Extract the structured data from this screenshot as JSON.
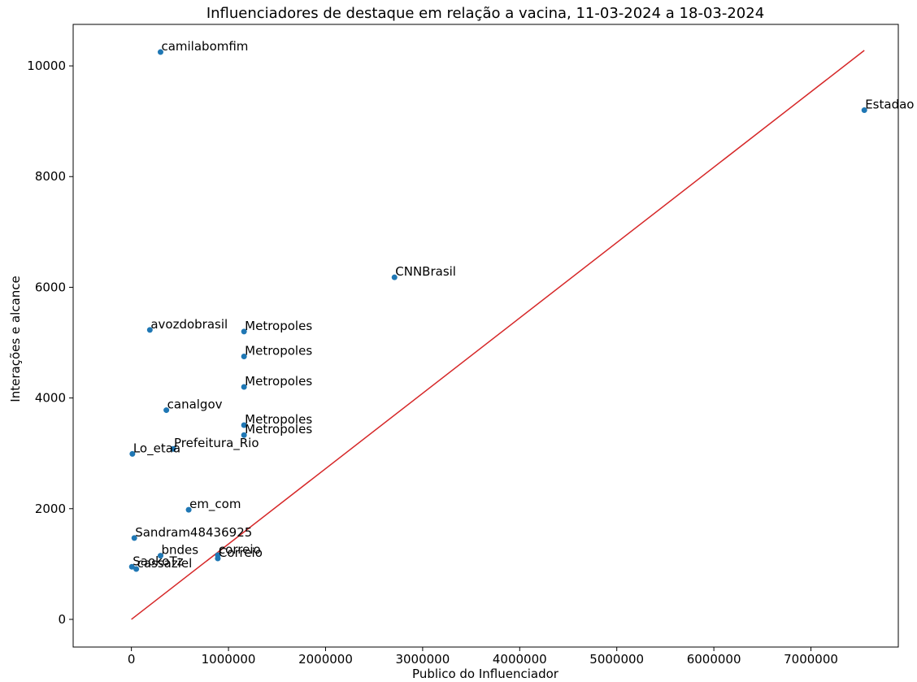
{
  "chart_data": {
    "type": "scatter",
    "title": "Influenciadores de destaque em relação a vacina, 11-03-2024 a 18-03-2024",
    "xlabel": "Publico do Influenciador",
    "ylabel": "Interações e alcance",
    "xlim": [
      -600000,
      7900000
    ],
    "ylim": [
      -500,
      10750
    ],
    "xticks": [
      0,
      1000000,
      2000000,
      3000000,
      4000000,
      5000000,
      6000000,
      7000000
    ],
    "xtick_labels": [
      "0",
      "1000000",
      "2000000",
      "3000000",
      "4000000",
      "5000000",
      "6000000",
      "7000000"
    ],
    "yticks": [
      0,
      2000,
      4000,
      6000,
      8000,
      10000
    ],
    "ytick_labels": [
      "0",
      "2000",
      "4000",
      "6000",
      "8000",
      "10000"
    ],
    "grid": false,
    "colors": {
      "points": "#1f77b4",
      "trend_line": "#d62728"
    },
    "trend_line": {
      "x": [
        0,
        7550000
      ],
      "y": [
        0,
        10280
      ]
    },
    "points": [
      {
        "label": "camilabomfim",
        "x": 300000,
        "y": 10250
      },
      {
        "label": "Estadao",
        "x": 7550000,
        "y": 9200
      },
      {
        "label": "CNNBrasil",
        "x": 2710000,
        "y": 6180
      },
      {
        "label": "avozdobrasil",
        "x": 190000,
        "y": 5230
      },
      {
        "label": "Metropoles",
        "x": 1160000,
        "y": 5200
      },
      {
        "label": "Metropoles",
        "x": 1160000,
        "y": 4750
      },
      {
        "label": "Metropoles",
        "x": 1160000,
        "y": 4200
      },
      {
        "label": "canalgov",
        "x": 360000,
        "y": 3780
      },
      {
        "label": "Metropoles",
        "x": 1160000,
        "y": 3510
      },
      {
        "label": "Metropoles",
        "x": 1160000,
        "y": 3330
      },
      {
        "label": "Prefeitura_Rio",
        "x": 430000,
        "y": 3080
      },
      {
        "label": "Lo_etaa",
        "x": 10000,
        "y": 2990
      },
      {
        "label": "em_com",
        "x": 590000,
        "y": 1980
      },
      {
        "label": "Sandram48436925",
        "x": 30000,
        "y": 1470
      },
      {
        "label": "bndes",
        "x": 300000,
        "y": 1150
      },
      {
        "label": "correio",
        "x": 890000,
        "y": 1160
      },
      {
        "label": "Correio",
        "x": 890000,
        "y": 1100
      },
      {
        "label": "SaokoTz",
        "x": 5000,
        "y": 950
      },
      {
        "label": "cassaziel",
        "x": 50000,
        "y": 910
      }
    ]
  }
}
